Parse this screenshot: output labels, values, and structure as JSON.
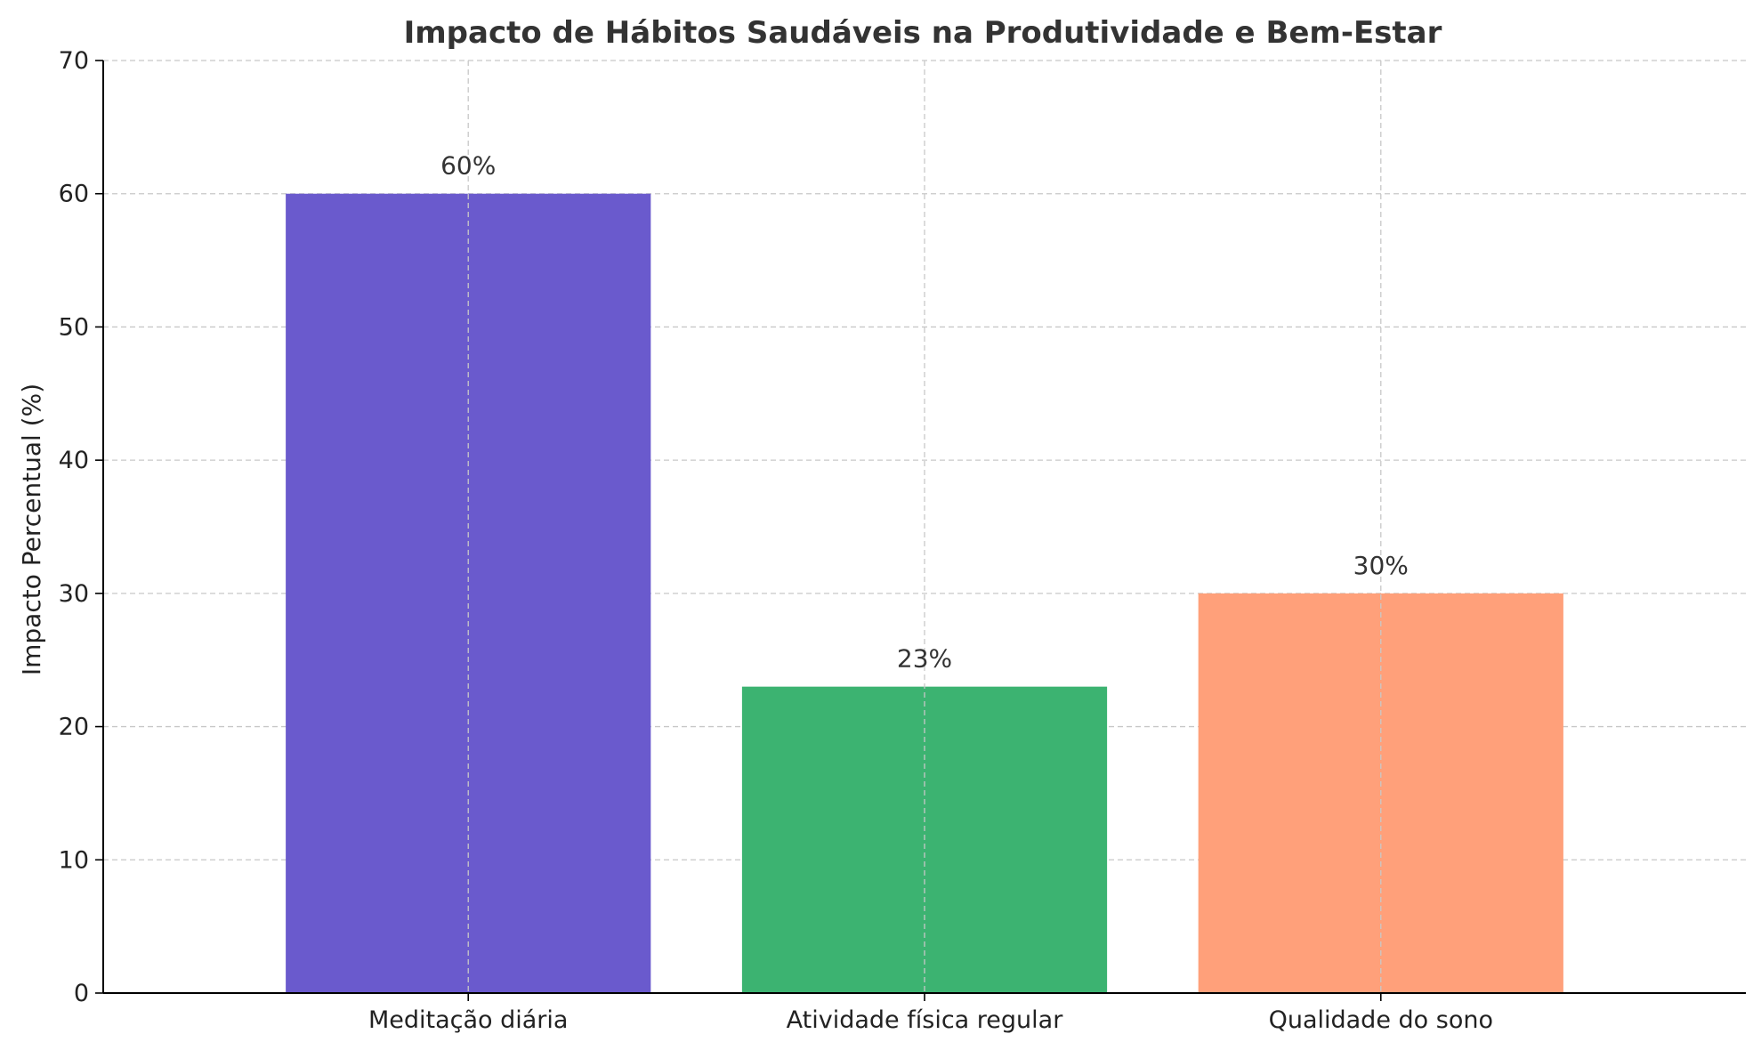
{
  "chart_data": {
    "type": "bar",
    "title": "Impacto de Hábitos Saudáveis na Produtividade e Bem-Estar",
    "xlabel": "",
    "ylabel": "Impacto Percentual (%)",
    "categories": [
      "Meditação diária",
      "Atividade física regular",
      "Qualidade do sono"
    ],
    "values": [
      60,
      23,
      30
    ],
    "data_labels": [
      "60%",
      "23%",
      "30%"
    ],
    "colors": [
      "#6a5acd",
      "#3cb371",
      "#ffa07a"
    ],
    "ylim": [
      0,
      70
    ],
    "yticks": [
      0,
      10,
      20,
      30,
      40,
      50,
      60,
      70
    ],
    "grid": true,
    "legend": "none"
  }
}
